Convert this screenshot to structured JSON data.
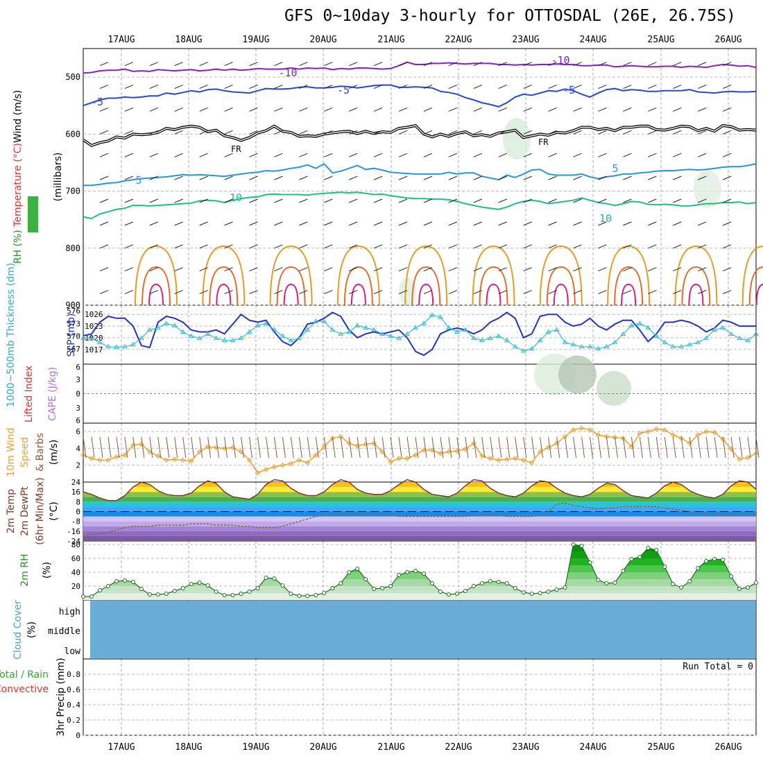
{
  "title": "GFS 0~10day 3-hourly for OTTOSDAL (26E, 26.75S)",
  "chart_data": [
    {
      "name": "upper-air",
      "type": "line",
      "days": [
        "17AUG",
        "18AUG",
        "19AUG",
        "20AUG",
        "21AUG",
        "22AUG",
        "23AUG",
        "24AUG",
        "25AUG",
        "26AUG"
      ],
      "ylabel": "(millibars)",
      "ylabel_parts": [
        "RH (%)",
        "Temperature (°C)",
        "Wind (m/s)"
      ],
      "y_ticks": [
        500,
        600,
        700,
        800,
        900
      ],
      "ylim": [
        450,
        900
      ],
      "freezing_label": "FR",
      "isotherm_labels": [
        "-10",
        "-5",
        "5",
        "10",
        "-10",
        "-5",
        "5",
        "10"
      ],
      "isotherms": [
        {
          "label": "-10",
          "color": "#8a1fbf",
          "level": [
            493,
            492,
            489,
            488,
            488,
            486,
            490,
            489,
            490,
            487,
            488,
            489,
            488,
            487,
            489,
            488,
            486,
            488,
            486,
            488,
            487,
            485,
            486,
            486,
            486,
            484,
            486,
            484,
            485,
            484,
            487,
            485,
            486,
            484,
            484,
            485,
            486,
            485,
            480,
            474,
            478,
            478,
            476,
            476,
            475,
            476,
            477,
            476,
            476,
            476,
            478,
            478,
            479,
            478,
            479,
            478,
            478,
            477,
            478,
            478,
            480,
            480,
            479,
            479,
            482,
            481,
            480,
            481,
            482,
            482,
            481,
            481,
            483,
            481,
            482,
            483,
            480,
            478,
            479,
            481,
            480,
            483
          ]
        },
        {
          "label": "-5",
          "color": "#2447d6",
          "level": [
            550,
            545,
            540,
            537,
            537,
            535,
            536,
            535,
            533,
            533,
            528,
            530,
            527,
            524,
            526,
            522,
            521,
            524,
            526,
            527,
            528,
            524,
            520,
            521,
            521,
            520,
            518,
            517,
            519,
            519,
            518,
            516,
            517,
            519,
            517,
            515,
            514,
            514,
            518,
            518,
            517,
            518,
            519,
            525,
            527,
            530,
            536,
            540,
            545,
            548,
            552,
            545,
            535,
            530,
            532,
            528,
            524,
            525,
            521,
            524,
            530,
            535,
            528,
            522,
            520,
            524,
            522,
            523,
            525,
            525,
            524,
            524,
            524,
            522,
            526,
            527,
            528,
            526,
            525,
            526,
            526,
            525
          ]
        },
        {
          "label": "FR",
          "color": "#000000",
          "level": [
            610,
            620,
            615,
            612,
            605,
            607,
            600,
            601,
            600,
            597,
            590,
            592,
            588,
            586,
            588,
            596,
            593,
            603,
            606,
            611,
            606,
            598,
            594,
            586,
            595,
            597,
            604,
            603,
            604,
            600,
            598,
            596,
            595,
            599,
            595,
            599,
            596,
            597,
            590,
            588,
            585,
            600,
            605,
            600,
            604,
            599,
            596,
            603,
            601,
            604,
            598,
            596,
            593,
            606,
            603,
            600,
            602,
            597,
            598,
            594,
            588,
            588,
            592,
            590,
            594,
            588,
            588,
            586,
            586,
            592,
            593,
            590,
            586,
            587,
            594,
            590,
            595,
            585,
            587,
            593,
            592,
            593
          ]
        },
        {
          "label": "5",
          "color": "#2596e0",
          "level": [
            690,
            690,
            688,
            686,
            685,
            682,
            680,
            678,
            677,
            676,
            675,
            673,
            671,
            672,
            671,
            672,
            673,
            674,
            672,
            670,
            668,
            667,
            664,
            665,
            663,
            660,
            658,
            654,
            660,
            652,
            668,
            665,
            660,
            655,
            662,
            660,
            663,
            667,
            668,
            669,
            670,
            670,
            670,
            670,
            667,
            670,
            668,
            668,
            674,
            677,
            680,
            672,
            676,
            670,
            663,
            662,
            670,
            672,
            672,
            672,
            670,
            675,
            678,
            675,
            673,
            670,
            670,
            668,
            667,
            665,
            664,
            664,
            663,
            662,
            663,
            662,
            660,
            658,
            657,
            657,
            655,
            652
          ]
        },
        {
          "label": "10",
          "color": "#1cbf85",
          "level": [
            745,
            748,
            740,
            736,
            732,
            730,
            725,
            725,
            726,
            725,
            724,
            723,
            722,
            721,
            717,
            716,
            717,
            720,
            716,
            713,
            711,
            710,
            706,
            705,
            706,
            706,
            706,
            707,
            705,
            704,
            703,
            702,
            703,
            702,
            704,
            706,
            705,
            708,
            710,
            712,
            713,
            713,
            714,
            714,
            715,
            718,
            722,
            725,
            728,
            730,
            732,
            728,
            722,
            718,
            716,
            718,
            722,
            720,
            718,
            716,
            712,
            716,
            720,
            722,
            725,
            722,
            718,
            719,
            723,
            724,
            723,
            724,
            726,
            726,
            724,
            722,
            722,
            720,
            720,
            719,
            722,
            720
          ]
        }
      ]
    },
    {
      "name": "sea-level-pressure-thickness",
      "type": "line",
      "ylabel_left": "1000~500mb Thickness (dm)",
      "ylabel_right": "SLP (mb)",
      "left_ticks": [
        "576",
        "573",
        "570",
        "567"
      ],
      "right_ticks": [
        "1026",
        "1023",
        "1020",
        "1017"
      ],
      "series": [
        {
          "name": "SLP (mb)",
          "color": "#2032c8",
          "values": [
            1020.5,
            1021,
            1024,
            1025.5,
            1025,
            1025,
            1023,
            1018,
            1017.5,
            1024,
            1025.5,
            1025,
            1024,
            1022,
            1021.5,
            1021.5,
            1022,
            1021,
            1023.5,
            1026,
            1024.5,
            1024,
            1024.5,
            1021.5,
            1019,
            1018,
            1020,
            1023.5,
            1024,
            1025,
            1026.5,
            1025.5,
            1022,
            1020,
            1021,
            1021.5,
            1021,
            1021.5,
            1022,
            1020,
            1016.5,
            1015.5,
            1017,
            1021,
            1022,
            1022.5,
            1022,
            1021,
            1022,
            1024,
            1025,
            1026.5,
            1025,
            1020,
            1021,
            1025.5,
            1026,
            1026,
            1024,
            1023,
            1023.5,
            1025,
            1023,
            1022,
            1023.5,
            1024.5,
            1024.5,
            1022,
            1019,
            1021,
            1024,
            1024,
            1024.5,
            1024,
            1023,
            1021.5,
            1022.5,
            1024.5,
            1024,
            1023,
            1023,
            1023
          ]
        },
        {
          "name": "Thickness (dm)",
          "color": "#33bbcc",
          "values": [
            569.5,
            569.5,
            568.5,
            567.5,
            567.4,
            567.5,
            568,
            569.5,
            571.5,
            572,
            573,
            572.5,
            571,
            570,
            569.5,
            570.5,
            569.5,
            569,
            569,
            569.5,
            571,
            572.5,
            573,
            571.5,
            570,
            569,
            569.5,
            571.5,
            573.5,
            573.5,
            571.5,
            570.5,
            571,
            572.5,
            572,
            571.5,
            570.5,
            570,
            569.5,
            570.5,
            572,
            573,
            575,
            574.5,
            572,
            571,
            571.5,
            569.5,
            569,
            569.5,
            570,
            569,
            567.5,
            566.5,
            567,
            569,
            571,
            571.5,
            568.5,
            568,
            567.5,
            567.5,
            567,
            567.5,
            568.5,
            570.5,
            572.5,
            573,
            572,
            570,
            568.5,
            567.5,
            567.5,
            568,
            568.5,
            569.5,
            571.5,
            572,
            570.5,
            569.5,
            569,
            570.5
          ]
        }
      ]
    },
    {
      "name": "stability",
      "type": "line",
      "ylabel_left": "Lifted Index",
      "ylabel_right": "CAPE (J/kg)",
      "ticks": [
        "6",
        "3",
        "0",
        "3",
        "6"
      ],
      "series": [
        {
          "name": "Lifted Index",
          "values": []
        },
        {
          "name": "CAPE (J/kg)",
          "values": []
        }
      ]
    },
    {
      "name": "10m-wind",
      "type": "line",
      "ylabel": "10m Wind Speed & Barbs (m/s)",
      "ylabel_parts": [
        "10m Wind",
        "Speed",
        "& Barbs",
        "(m/s)"
      ],
      "y_ticks": [
        "2",
        "4",
        "6"
      ],
      "ylim": [
        0,
        7
      ],
      "series": [
        {
          "name": "Wind speed (m/s)",
          "color": "#e8a030",
          "values": [
            3.2,
            2.8,
            2.6,
            2.6,
            3,
            3.2,
            4.4,
            4.5,
            3.6,
            3.1,
            2.6,
            2.7,
            2.6,
            2.5,
            3.6,
            4.2,
            4.1,
            4,
            4.1,
            3.6,
            2.6,
            1.1,
            1.5,
            1.8,
            2,
            2.2,
            2.6,
            2.3,
            3.2,
            4.2,
            5.2,
            5.4,
            4.6,
            4.3,
            4.5,
            4.6,
            3.6,
            2.4,
            2.8,
            2.8,
            3.2,
            3.8,
            3.8,
            3.4,
            3.6,
            3.7,
            3.9,
            4.6,
            3.1,
            2.8,
            2.6,
            2.7,
            2.8,
            2.6,
            2.3,
            3.6,
            4.1,
            4.6,
            5.4,
            6.2,
            6.4,
            6.2,
            5.6,
            5.4,
            5.3,
            5.2,
            4.2,
            5.8,
            6,
            6.3,
            6.2,
            5.6,
            5.2,
            4.6,
            5.6,
            6,
            5.9,
            5.1,
            3.9,
            2.7,
            2.9,
            3.4
          ]
        }
      ]
    },
    {
      "name": "2m-temperature",
      "type": "area",
      "ylabel": "2m Temp 2m DewPt (6hr Min/Max) (°C)",
      "ylabel_parts": [
        "2m Temp",
        "2m DewPt",
        "(6hr Min/Max)",
        "(°C)"
      ],
      "y_ticks": [
        "24",
        "16",
        "8",
        "0",
        "-8",
        "-16",
        "-24"
      ],
      "ylim": [
        -24,
        24
      ],
      "series": [
        {
          "name": "2m Temp (°C)",
          "values": [
            16,
            14,
            11,
            9,
            9,
            13,
            20,
            24,
            22,
            17,
            14,
            13,
            13,
            15,
            21,
            25,
            23,
            16,
            12,
            11,
            10,
            14,
            22,
            26,
            25,
            19,
            15,
            13,
            13,
            16,
            22,
            26,
            24,
            18,
            15,
            14,
            14,
            17,
            22,
            26,
            24,
            18,
            14,
            13,
            12,
            15,
            21,
            26,
            25,
            19,
            15,
            13,
            12,
            15,
            21,
            25,
            24,
            19,
            15,
            13,
            12,
            14,
            19,
            23,
            22,
            17,
            13,
            12,
            11,
            15,
            21,
            24,
            22,
            17,
            14,
            12,
            11,
            14,
            21,
            25,
            24,
            18
          ]
        },
        {
          "name": "2m DewPt (°C)",
          "values": [
            -20,
            -19,
            -18,
            -17,
            -15,
            -13,
            -12,
            -12,
            -12,
            -11,
            -11,
            -11,
            -11,
            -10,
            -10,
            -10,
            -11,
            -11,
            -11,
            -12,
            -12,
            -13,
            -13,
            -13,
            -12,
            -10,
            -8,
            -6,
            -4,
            -3,
            -2,
            -2,
            -2,
            -2,
            -2,
            -2,
            -2,
            -3,
            -4,
            -4,
            -4,
            -4,
            -4,
            -4,
            -4,
            -4,
            -4,
            -3,
            -3,
            -3,
            -3,
            -4,
            -4,
            -4,
            -4,
            -3,
            0,
            6,
            7,
            5,
            4,
            3,
            2,
            3,
            3,
            4,
            4,
            4,
            4,
            4,
            3,
            2,
            1,
            0,
            -1,
            -2,
            -3,
            -3,
            -3,
            -3,
            -3,
            -3
          ]
        }
      ]
    },
    {
      "name": "2m-rh",
      "type": "area",
      "ylabel": "2m RH (%)",
      "y_ticks": [
        "20",
        "40",
        "60",
        "80"
      ],
      "ylim": [
        0,
        85
      ],
      "series": [
        {
          "name": "2m RH (%)",
          "values": [
            5,
            5,
            14,
            20,
            27,
            28,
            26,
            16,
            8,
            8,
            9,
            13,
            17,
            23,
            25,
            21,
            12,
            7,
            7,
            9,
            12,
            17,
            32,
            31,
            21,
            9,
            6,
            6,
            7,
            10,
            17,
            24,
            40,
            45,
            30,
            16,
            17,
            20,
            36,
            40,
            42,
            38,
            24,
            12,
            8,
            9,
            13,
            20,
            24,
            27,
            26,
            24,
            17,
            11,
            9,
            10,
            12,
            15,
            18,
            80,
            78,
            54,
            29,
            24,
            25,
            42,
            59,
            62,
            75,
            72,
            48,
            23,
            18,
            27,
            46,
            56,
            59,
            58,
            34,
            16,
            18,
            25
          ]
        }
      ]
    },
    {
      "name": "cloud-cover",
      "type": "area",
      "ylabel": "Cloud Cover (%)",
      "levels": [
        "high",
        "middle",
        "low"
      ],
      "fill_color": "#6aadd6",
      "series": [
        {
          "name": "Cloud cover",
          "values": []
        }
      ]
    },
    {
      "name": "precipitation",
      "type": "bar",
      "ylabel": "3hr Precip (mm)",
      "legend": [
        "Total / Rain",
        "Convective"
      ],
      "run_total_label": "Run Total = 0",
      "y_ticks": [
        "0",
        "0.2",
        "0.4",
        "0.6",
        "0.8"
      ],
      "ylim": [
        0,
        1
      ],
      "values": []
    }
  ]
}
